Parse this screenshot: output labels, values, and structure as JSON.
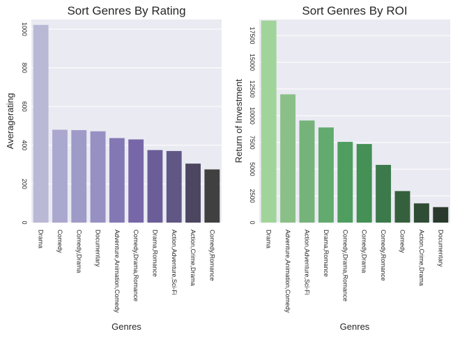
{
  "chart_data": [
    {
      "type": "bar",
      "title": "Sort Genres By Rating",
      "xlabel": "Genres",
      "ylabel": "Averagerating",
      "ylim": [
        0,
        1050
      ],
      "yticks": [
        0,
        200,
        400,
        600,
        800,
        1000
      ],
      "grid": true,
      "categories": [
        "Drama",
        "Comedy",
        "Comedy,Drama",
        "Documentary",
        "Adventure,Animation,Comedy",
        "Comedy,Drama,Romance",
        "Drama,Romance",
        "Action,Adventure,Sci-Fi",
        "Action,Crime,Drama",
        "Comedy,Romance"
      ],
      "values": [
        1022,
        480,
        478,
        472,
        437,
        430,
        375,
        370,
        305,
        275
      ],
      "colors": [
        "#b9b9d6",
        "#aaa8cf",
        "#9f9bc8",
        "#9690c3",
        "#8478b4",
        "#7767a8",
        "#6b5e98",
        "#605785",
        "#4c4661",
        "#404040"
      ]
    },
    {
      "type": "bar",
      "title": "Sort Genres By ROI",
      "xlabel": "Genres",
      "ylabel": "Return of Investment",
      "ylim": [
        0,
        19000
      ],
      "yticks": [
        0,
        2500,
        5000,
        7500,
        10000,
        12500,
        15000,
        17500
      ],
      "grid": true,
      "categories": [
        "Drama",
        "Adventure,Animation,Comedy",
        "Action,Adventure,Sci-Fi",
        "Drama,Romance",
        "Comedy,Drama,Romance",
        "Comedy,Drama",
        "Comedy,Romance",
        "Comedy",
        "Action,Crime,Drama",
        "Documentary"
      ],
      "values": [
        18900,
        12000,
        9550,
        8900,
        7550,
        7350,
        5400,
        2950,
        1800,
        1450
      ],
      "colors": [
        "#a1d49a",
        "#8ac087",
        "#75b37a",
        "#62aa6e",
        "#4f9e5f",
        "#449055",
        "#3c7a4b",
        "#35603d",
        "#2f4c34",
        "#293a2c"
      ]
    }
  ]
}
